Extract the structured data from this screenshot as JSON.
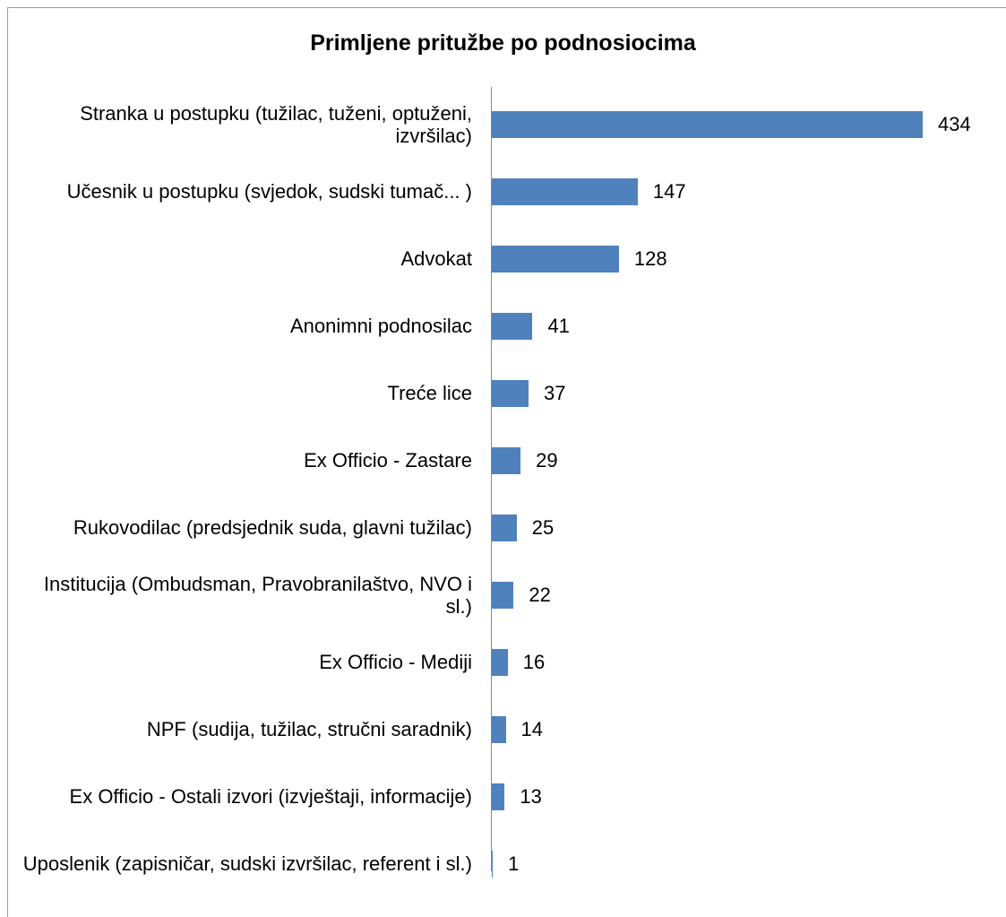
{
  "chart_data": {
    "type": "bar",
    "orientation": "horizontal",
    "title": "Primljene pritužbe po podnosiocima",
    "categories": [
      "Stranka u postupku (tužilac, tuženi, optuženi, izvršilac)",
      "Učesnik u postupku (svjedok, sudski tumač... )",
      "Advokat",
      "Anonimni podnosilac",
      "Treće lice",
      "Ex Officio - Zastare",
      "Rukovodilac (predsjednik suda, glavni tužilac)",
      "Institucija (Ombudsman, Pravobranilaštvo, NVO i sl.)",
      "Ex Officio - Mediji",
      "NPF (sudija, tužilac, stručni saradnik)",
      "Ex Officio - Ostali izvori (izvještaji, informacije)",
      "Uposlenik (zapisničar, sudski izvršilac, referent i sl.)"
    ],
    "values": [
      434,
      147,
      128,
      41,
      37,
      29,
      25,
      22,
      16,
      14,
      13,
      1
    ],
    "color": "#4f81bd"
  }
}
